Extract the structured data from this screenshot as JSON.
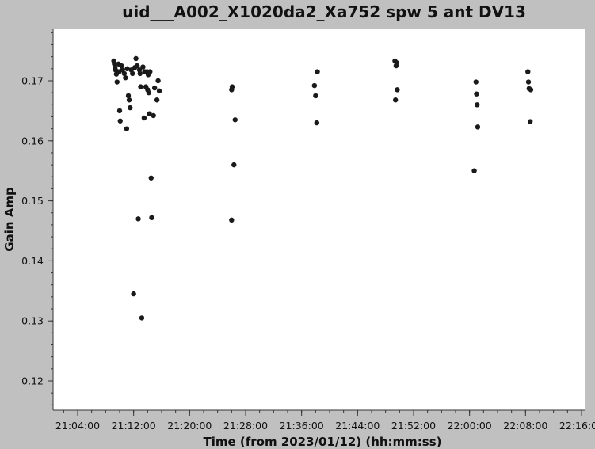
{
  "chart_data": {
    "type": "scatter",
    "title": "uid___A002_X1020da2_Xa752 spw 5 ant DV13",
    "xlabel": "Time (from 2023/01/12) (hh:mm:ss)",
    "ylabel": "Gain Amp",
    "x_ticks": [
      "21:04:00",
      "21:12:00",
      "21:20:00",
      "21:28:00",
      "21:36:00",
      "21:44:00",
      "21:52:00",
      "22:00:00",
      "22:08:00",
      "22:16:00"
    ],
    "y_ticks": [
      "0.12",
      "0.13",
      "0.14",
      "0.15",
      "0.16",
      "0.17"
    ],
    "x_range": [
      "21:00:00",
      "22:19:00"
    ],
    "ylim": [
      0.1145,
      0.1788
    ],
    "grid": false,
    "point_color": "#1a1a1a",
    "background_color": "#ffffff",
    "frame_color": "#c0c0c0",
    "points": [
      [
        "21:09:10",
        0.1733
      ],
      [
        "21:09:15",
        0.1728
      ],
      [
        "21:09:20",
        0.1722
      ],
      [
        "21:09:25",
        0.1718
      ],
      [
        "21:09:32",
        0.1711
      ],
      [
        "21:09:38",
        0.1698
      ],
      [
        "21:09:50",
        0.1728
      ],
      [
        "21:09:55",
        0.1715
      ],
      [
        "21:10:00",
        0.165
      ],
      [
        "21:10:05",
        0.1633
      ],
      [
        "21:10:15",
        0.1725
      ],
      [
        "21:10:25",
        0.1718
      ],
      [
        "21:10:40",
        0.1712
      ],
      [
        "21:10:50",
        0.1705
      ],
      [
        "21:11:00",
        0.162
      ],
      [
        "21:11:05",
        0.172
      ],
      [
        "21:11:15",
        0.1675
      ],
      [
        "21:11:22",
        0.1668
      ],
      [
        "21:11:30",
        0.1655
      ],
      [
        "21:11:40",
        0.1718
      ],
      [
        "21:11:50",
        0.1712
      ],
      [
        "21:12:00",
        0.1345
      ],
      [
        "21:12:10",
        0.1722
      ],
      [
        "21:12:20",
        0.1737
      ],
      [
        "21:12:30",
        0.1725
      ],
      [
        "21:12:40",
        0.147
      ],
      [
        "21:12:50",
        0.1718
      ],
      [
        "21:12:55",
        0.1712
      ],
      [
        "21:13:00",
        0.169
      ],
      [
        "21:13:10",
        0.1305
      ],
      [
        "21:13:20",
        0.1723
      ],
      [
        "21:13:30",
        0.1638
      ],
      [
        "21:13:35",
        0.1715
      ],
      [
        "21:13:45",
        0.169
      ],
      [
        "21:13:55",
        0.1715
      ],
      [
        "21:14:00",
        0.1685
      ],
      [
        "21:14:05",
        0.171
      ],
      [
        "21:14:10",
        0.168
      ],
      [
        "21:14:15",
        0.1645
      ],
      [
        "21:14:20",
        0.1715
      ],
      [
        "21:14:30",
        0.1538
      ],
      [
        "21:14:35",
        0.1472
      ],
      [
        "21:14:50",
        0.1642
      ],
      [
        "21:15:00",
        0.1688
      ],
      [
        "21:15:20",
        0.1668
      ],
      [
        "21:15:30",
        0.17
      ],
      [
        "21:15:40",
        0.1683
      ],
      [
        "21:26:00",
        0.1685
      ],
      [
        "21:26:05",
        0.169
      ],
      [
        "21:26:20",
        0.156
      ],
      [
        "21:26:30",
        0.1635
      ],
      [
        "21:26:00",
        0.1468
      ],
      [
        "21:37:50",
        0.1692
      ],
      [
        "21:38:00",
        0.1675
      ],
      [
        "21:38:10",
        0.163
      ],
      [
        "21:38:15",
        0.1715
      ],
      [
        "21:49:20",
        0.1733
      ],
      [
        "21:49:30",
        0.1725
      ],
      [
        "21:49:40",
        0.1685
      ],
      [
        "21:49:25",
        0.1668
      ],
      [
        "21:49:35",
        0.173
      ],
      [
        "22:00:40",
        0.155
      ],
      [
        "22:00:55",
        0.1698
      ],
      [
        "22:01:00",
        0.1678
      ],
      [
        "22:01:05",
        0.166
      ],
      [
        "22:01:10",
        0.1623
      ],
      [
        "22:08:20",
        0.1715
      ],
      [
        "22:08:25",
        0.1698
      ],
      [
        "22:08:30",
        0.1687
      ],
      [
        "22:08:40",
        0.1632
      ],
      [
        "22:08:45",
        0.1685
      ]
    ]
  }
}
